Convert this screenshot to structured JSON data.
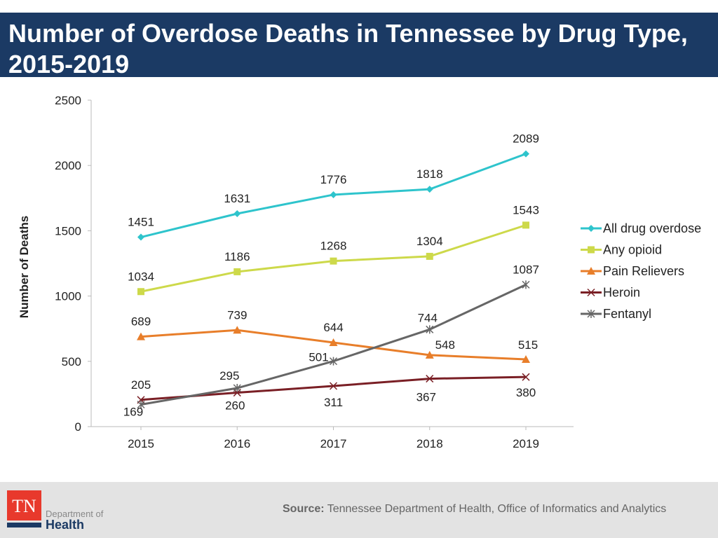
{
  "title": "Number of Overdose Deaths in Tennessee by Drug Type, 2015-2019",
  "footer": {
    "logo_tn": "TN",
    "logo_dept": "Department of",
    "logo_health": "Health",
    "source_label": "Source:",
    "source_text": "Tennessee Department of Health, Office of Informatics and Analytics"
  },
  "chart_data": {
    "type": "line",
    "title": "",
    "xlabel": "",
    "ylabel": "Number of Deaths",
    "ylim": [
      0,
      2500
    ],
    "yticks": [
      0,
      500,
      1000,
      1500,
      2000,
      2500
    ],
    "categories": [
      "2015",
      "2016",
      "2017",
      "2018",
      "2019"
    ],
    "legend": "right",
    "grid": false,
    "series": [
      {
        "name": "All drug overdose",
        "color": "#2ec4cc",
        "marker": "diamond",
        "values": [
          1451,
          1631,
          1776,
          1818,
          2089
        ]
      },
      {
        "name": "Any opioid",
        "color": "#cdd94a",
        "marker": "square",
        "values": [
          1034,
          1186,
          1268,
          1304,
          1543
        ]
      },
      {
        "name": "Pain Relievers",
        "color": "#e87e2a",
        "marker": "triangle",
        "values": [
          689,
          739,
          644,
          548,
          515
        ]
      },
      {
        "name": "Heroin",
        "color": "#7a1f25",
        "marker": "x",
        "values": [
          205,
          260,
          311,
          367,
          380
        ]
      },
      {
        "name": "Fentanyl",
        "color": "#666666",
        "marker": "star",
        "values": [
          169,
          295,
          501,
          744,
          1087
        ]
      }
    ]
  }
}
